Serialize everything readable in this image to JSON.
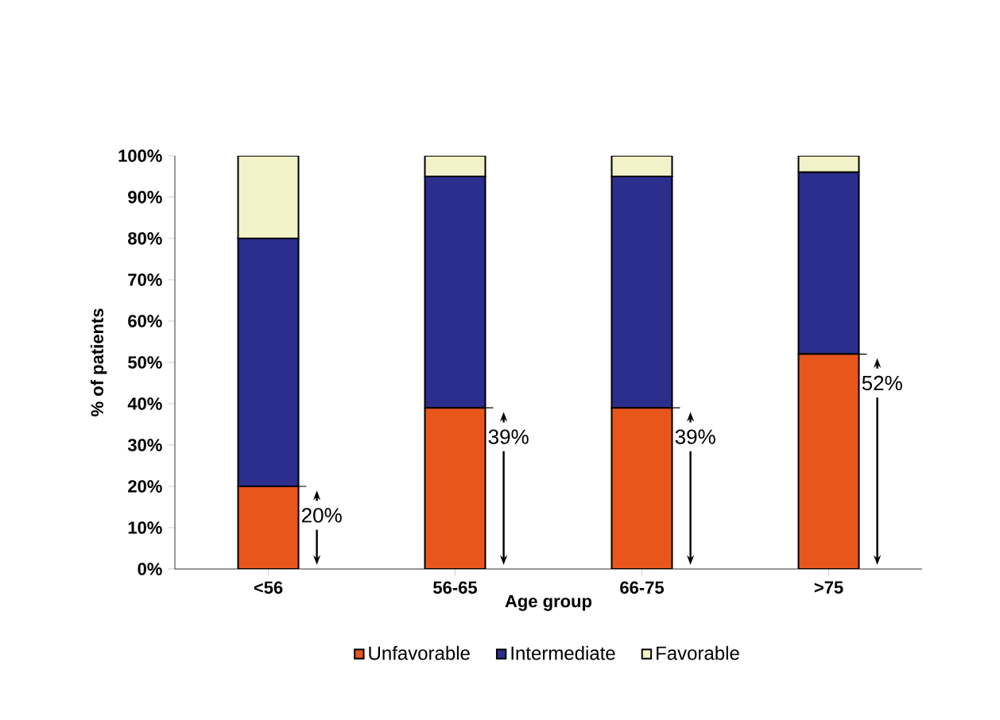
{
  "chart_data": {
    "type": "bar",
    "stacked": true,
    "xlabel": "Age group",
    "ylabel": "% of patients",
    "categories": [
      "<56",
      "56-65",
      "66-75",
      ">75"
    ],
    "series": [
      {
        "name": "Unfavorable",
        "color": "#e8561c",
        "values": [
          20,
          39,
          39,
          52
        ],
        "value_labels": [
          "20%",
          "39%",
          "39%",
          "52%"
        ]
      },
      {
        "name": "Intermediate",
        "color": "#2b2e8c",
        "values": [
          60,
          56,
          56,
          44
        ]
      },
      {
        "name": "Favorable",
        "color": "#f2f2c8",
        "values": [
          20,
          5,
          5,
          4
        ]
      }
    ],
    "ylim": [
      0,
      100
    ],
    "yticks": [
      {
        "value": 0,
        "label": "0%"
      },
      {
        "value": 10,
        "label": "10%"
      },
      {
        "value": 20,
        "label": "20%"
      },
      {
        "value": 30,
        "label": "30%"
      },
      {
        "value": 40,
        "label": "40%"
      },
      {
        "value": 50,
        "label": "50%"
      },
      {
        "value": 60,
        "label": "60%"
      },
      {
        "value": 70,
        "label": "70%"
      },
      {
        "value": 80,
        "label": "80%"
      },
      {
        "value": 90,
        "label": "90%"
      },
      {
        "value": 100,
        "label": "100%"
      }
    ],
    "legend": "bottom"
  }
}
